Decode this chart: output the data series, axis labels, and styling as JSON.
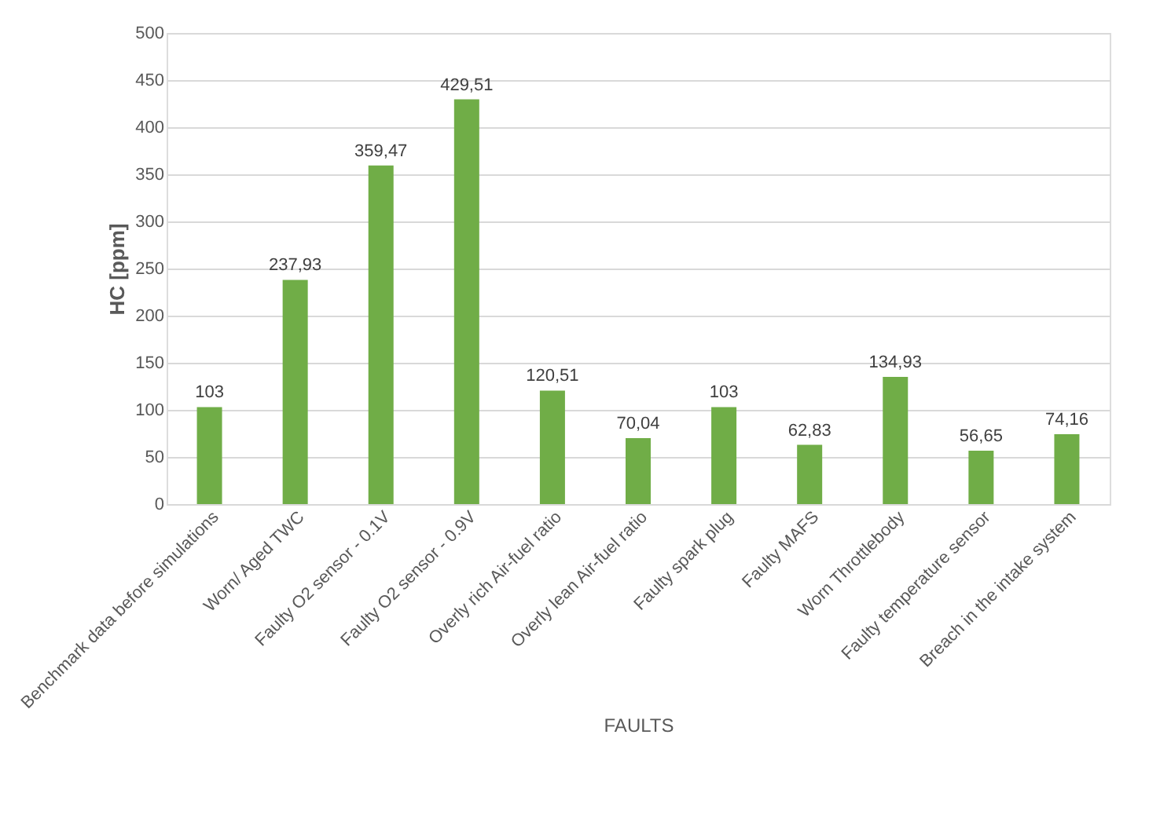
{
  "chart_data": {
    "type": "bar",
    "xlabel": "FAULTS",
    "ylabel": "HC [ppm]",
    "categories": [
      "Benchmark data before simulations",
      "Worn/ Aged TWC",
      "Faulty O2 sensor - 0.1V",
      "Faulty O2 sensor - 0.9V",
      "Overly rich Air-fuel ratio",
      "Overly lean Air-fuel ratio",
      "Faulty spark plug",
      "Faulty MAFS",
      "Worn Throttlebody",
      "Faulty temperature sensor",
      "Breach in the intake system"
    ],
    "values": [
      103,
      237.93,
      359.47,
      429.51,
      120.51,
      70.04,
      103,
      62.83,
      134.93,
      56.65,
      74.16
    ],
    "value_labels": [
      "103",
      "237,93",
      "359,47",
      "429,51",
      "120,51",
      "70,04",
      "103",
      "62,83",
      "134,93",
      "56,65",
      "74,16"
    ],
    "color": "#70ad47",
    "ylim": [
      0,
      500
    ],
    "yticks": [
      0,
      50,
      100,
      150,
      200,
      250,
      300,
      350,
      400,
      450,
      500
    ],
    "grid": "y"
  }
}
